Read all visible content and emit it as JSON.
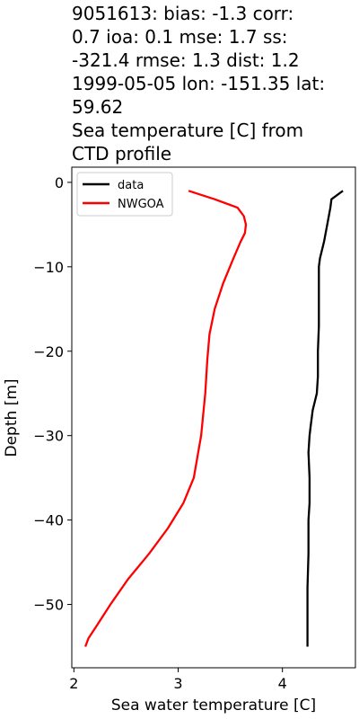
{
  "chart_data": {
    "type": "line",
    "title_lines": [
      "9051613: bias: -1.3  corr:",
      "0.7  ioa: 0.1  mse: 1.7  ss:",
      "-321.4  rmse: 1.3  dist: 1.2",
      "1999-05-05 lon: -151.35 lat:",
      "59.62",
      "Sea temperature [C] from",
      "CTD profile"
    ],
    "xlabel": "Sea water temperature [C]",
    "ylabel": "Depth [m]",
    "xlim": [
      1.98,
      4.7
    ],
    "ylim": [
      -57.5,
      1.8
    ],
    "xticks": [
      2,
      3,
      4
    ],
    "yticks": [
      0,
      -10,
      -20,
      -30,
      -40,
      -50
    ],
    "tick_labels": {
      "x": [
        "2",
        "3",
        "4"
      ],
      "y": [
        "0",
        "−10",
        "−20",
        "−30",
        "−40",
        "−50"
      ]
    },
    "legend_position": "top-left",
    "grid": false,
    "series": [
      {
        "name": "data",
        "color": "#000000",
        "x": [
          4.58,
          4.47,
          4.46,
          4.43,
          4.4,
          4.36,
          4.35,
          4.35,
          4.35,
          4.34,
          4.34,
          4.33,
          4.31,
          4.29,
          4.27,
          4.26,
          4.25,
          4.26,
          4.26,
          4.25,
          4.25,
          4.24,
          4.24,
          4.24
        ],
        "y": [
          -1,
          -2,
          -3,
          -5,
          -7,
          -9,
          -10,
          -13,
          -17,
          -20,
          -23,
          -25,
          -26,
          -27,
          -29,
          -30,
          -32,
          -35,
          -38,
          -40,
          -44,
          -48,
          -52,
          -55
        ]
      },
      {
        "name": "NWGOA",
        "color": "#ff0000",
        "x": [
          3.1,
          3.35,
          3.57,
          3.63,
          3.65,
          3.64,
          3.6,
          3.53,
          3.43,
          3.35,
          3.3,
          3.28,
          3.26,
          3.22,
          3.15,
          3.05,
          2.9,
          2.72,
          2.52,
          2.35,
          2.22,
          2.14,
          2.11
        ],
        "y": [
          -1,
          -2,
          -3,
          -4,
          -5,
          -6,
          -7,
          -9,
          -12,
          -15,
          -18,
          -21,
          -25,
          -30,
          -35,
          -38,
          -41,
          -44,
          -47,
          -50,
          -52.5,
          -54,
          -55
        ]
      }
    ]
  }
}
